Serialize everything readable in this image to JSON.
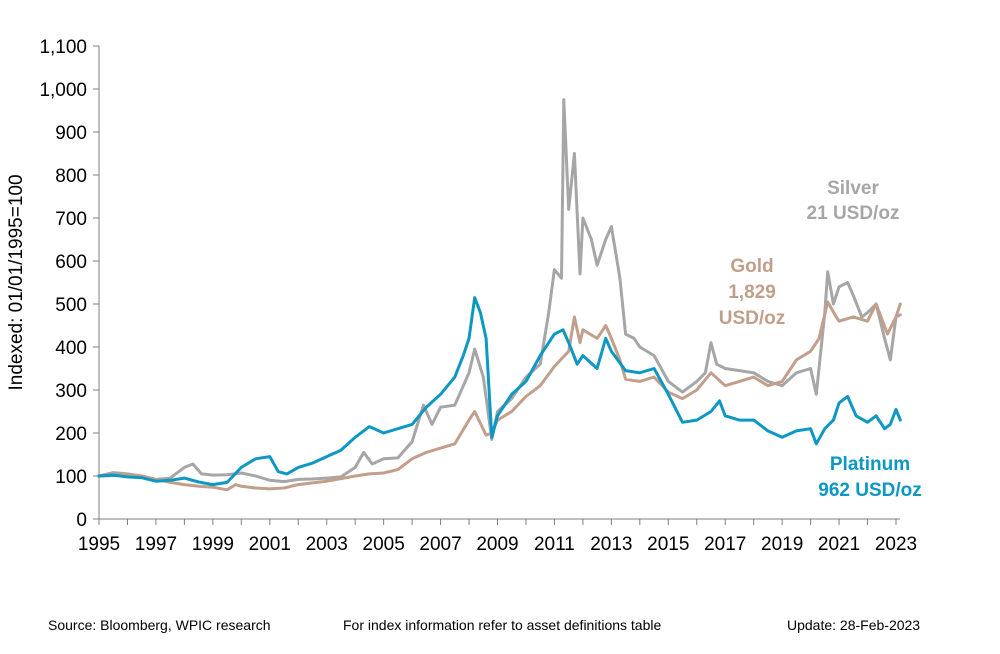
{
  "chart_data": {
    "type": "line",
    "ylabel": "Indexed: 01/01/1995=100",
    "ylim": [
      0,
      1100
    ],
    "yticks": [
      0,
      100,
      200,
      300,
      400,
      500,
      600,
      700,
      800,
      900,
      1000,
      1100
    ],
    "ytick_labels": [
      "0",
      "100",
      "200",
      "300",
      "400",
      "500",
      "600",
      "700",
      "800",
      "900",
      "1,000",
      "1,100"
    ],
    "xlim": [
      1995,
      2023.2
    ],
    "xticks": [
      1995,
      1997,
      1999,
      2001,
      2003,
      2005,
      2007,
      2009,
      2011,
      2013,
      2015,
      2017,
      2019,
      2021,
      2023
    ],
    "xtick_labels": [
      "1995",
      "1997",
      "1999",
      "2001",
      "2003",
      "2005",
      "2007",
      "2009",
      "2011",
      "2013",
      "2015",
      "2017",
      "2019",
      "2021",
      "2023"
    ],
    "grid": false,
    "legend": "none",
    "series": [
      {
        "name": "Silver",
        "color": "#A6A6A6",
        "label_lines": [
          "Silver",
          "21 USD/oz"
        ],
        "points": [
          [
            1995,
            100
          ],
          [
            1995.5,
            108
          ],
          [
            1996,
            105
          ],
          [
            1996.5,
            100
          ],
          [
            1997,
            92
          ],
          [
            1997.5,
            95
          ],
          [
            1998,
            120
          ],
          [
            1998.3,
            128
          ],
          [
            1998.6,
            105
          ],
          [
            1999,
            102
          ],
          [
            1999.5,
            103
          ],
          [
            2000,
            107
          ],
          [
            2000.5,
            100
          ],
          [
            2001,
            90
          ],
          [
            2001.5,
            87
          ],
          [
            2002,
            92
          ],
          [
            2002.5,
            93
          ],
          [
            2003,
            95
          ],
          [
            2003.5,
            98
          ],
          [
            2004,
            120
          ],
          [
            2004.3,
            155
          ],
          [
            2004.6,
            128
          ],
          [
            2005,
            140
          ],
          [
            2005.5,
            142
          ],
          [
            2006,
            180
          ],
          [
            2006.4,
            265
          ],
          [
            2006.7,
            220
          ],
          [
            2007,
            260
          ],
          [
            2007.5,
            265
          ],
          [
            2008,
            340
          ],
          [
            2008.2,
            395
          ],
          [
            2008.5,
            330
          ],
          [
            2008.8,
            185
          ],
          [
            2009,
            250
          ],
          [
            2009.5,
            280
          ],
          [
            2010,
            330
          ],
          [
            2010.5,
            360
          ],
          [
            2010.8,
            480
          ],
          [
            2011,
            580
          ],
          [
            2011.25,
            560
          ],
          [
            2011.33,
            975
          ],
          [
            2011.5,
            720
          ],
          [
            2011.7,
            850
          ],
          [
            2011.9,
            570
          ],
          [
            2012,
            700
          ],
          [
            2012.3,
            650
          ],
          [
            2012.5,
            590
          ],
          [
            2012.8,
            650
          ],
          [
            2013,
            680
          ],
          [
            2013.3,
            560
          ],
          [
            2013.5,
            430
          ],
          [
            2013.8,
            420
          ],
          [
            2014,
            400
          ],
          [
            2014.5,
            380
          ],
          [
            2015,
            320
          ],
          [
            2015.5,
            295
          ],
          [
            2016,
            320
          ],
          [
            2016.3,
            340
          ],
          [
            2016.5,
            410
          ],
          [
            2016.7,
            360
          ],
          [
            2017,
            350
          ],
          [
            2017.5,
            345
          ],
          [
            2018,
            340
          ],
          [
            2018.5,
            320
          ],
          [
            2019,
            310
          ],
          [
            2019.5,
            340
          ],
          [
            2020,
            350
          ],
          [
            2020.2,
            290
          ],
          [
            2020.5,
            480
          ],
          [
            2020.6,
            575
          ],
          [
            2020.8,
            500
          ],
          [
            2021,
            540
          ],
          [
            2021.3,
            550
          ],
          [
            2021.5,
            520
          ],
          [
            2021.8,
            470
          ],
          [
            2022,
            480
          ],
          [
            2022.3,
            500
          ],
          [
            2022.6,
            420
          ],
          [
            2022.8,
            370
          ],
          [
            2023,
            470
          ],
          [
            2023.15,
            475
          ]
        ]
      },
      {
        "name": "Gold",
        "color": "#C29F8A",
        "label_lines": [
          "Gold",
          "1,829",
          "USD/oz"
        ],
        "points": [
          [
            1995,
            100
          ],
          [
            1995.5,
            101
          ],
          [
            1996,
            104
          ],
          [
            1996.5,
            100
          ],
          [
            1997,
            92
          ],
          [
            1997.5,
            85
          ],
          [
            1998,
            80
          ],
          [
            1998.5,
            76
          ],
          [
            1999,
            74
          ],
          [
            1999.5,
            68
          ],
          [
            1999.8,
            80
          ],
          [
            2000,
            76
          ],
          [
            2000.5,
            72
          ],
          [
            2001,
            70
          ],
          [
            2001.5,
            72
          ],
          [
            2002,
            80
          ],
          [
            2002.5,
            84
          ],
          [
            2003,
            88
          ],
          [
            2003.5,
            94
          ],
          [
            2004,
            100
          ],
          [
            2004.5,
            105
          ],
          [
            2005,
            107
          ],
          [
            2005.5,
            115
          ],
          [
            2006,
            140
          ],
          [
            2006.5,
            155
          ],
          [
            2007,
            165
          ],
          [
            2007.5,
            175
          ],
          [
            2008,
            230
          ],
          [
            2008.2,
            250
          ],
          [
            2008.6,
            195
          ],
          [
            2008.8,
            200
          ],
          [
            2009,
            230
          ],
          [
            2009.5,
            250
          ],
          [
            2010,
            285
          ],
          [
            2010.5,
            310
          ],
          [
            2011,
            355
          ],
          [
            2011.5,
            390
          ],
          [
            2011.7,
            470
          ],
          [
            2011.9,
            410
          ],
          [
            2012,
            440
          ],
          [
            2012.5,
            420
          ],
          [
            2012.8,
            450
          ],
          [
            2013,
            420
          ],
          [
            2013.3,
            370
          ],
          [
            2013.5,
            325
          ],
          [
            2014,
            320
          ],
          [
            2014.5,
            330
          ],
          [
            2015,
            295
          ],
          [
            2015.5,
            280
          ],
          [
            2016,
            300
          ],
          [
            2016.5,
            340
          ],
          [
            2017,
            310
          ],
          [
            2017.5,
            320
          ],
          [
            2018,
            330
          ],
          [
            2018.5,
            310
          ],
          [
            2019,
            320
          ],
          [
            2019.5,
            370
          ],
          [
            2020,
            390
          ],
          [
            2020.3,
            420
          ],
          [
            2020.6,
            505
          ],
          [
            2020.9,
            470
          ],
          [
            2021,
            460
          ],
          [
            2021.5,
            470
          ],
          [
            2022,
            460
          ],
          [
            2022.3,
            500
          ],
          [
            2022.7,
            430
          ],
          [
            2023,
            470
          ],
          [
            2023.15,
            500
          ]
        ]
      },
      {
        "name": "Platinum",
        "color": "#0D97C3",
        "label_lines": [
          "Platinum",
          "962 USD/oz"
        ],
        "points": [
          [
            1995,
            100
          ],
          [
            1995.5,
            102
          ],
          [
            1996,
            98
          ],
          [
            1996.5,
            96
          ],
          [
            1997,
            88
          ],
          [
            1997.5,
            90
          ],
          [
            1998,
            95
          ],
          [
            1998.5,
            86
          ],
          [
            1999,
            80
          ],
          [
            1999.5,
            85
          ],
          [
            2000,
            120
          ],
          [
            2000.5,
            140
          ],
          [
            2001,
            145
          ],
          [
            2001.3,
            110
          ],
          [
            2001.6,
            105
          ],
          [
            2002,
            120
          ],
          [
            2002.5,
            130
          ],
          [
            2003,
            145
          ],
          [
            2003.5,
            160
          ],
          [
            2004,
            190
          ],
          [
            2004.5,
            215
          ],
          [
            2005,
            200
          ],
          [
            2005.5,
            210
          ],
          [
            2006,
            220
          ],
          [
            2006.5,
            260
          ],
          [
            2007,
            290
          ],
          [
            2007.5,
            330
          ],
          [
            2007.8,
            380
          ],
          [
            2008,
            420
          ],
          [
            2008.2,
            515
          ],
          [
            2008.4,
            480
          ],
          [
            2008.6,
            420
          ],
          [
            2008.8,
            190
          ],
          [
            2009,
            240
          ],
          [
            2009.5,
            290
          ],
          [
            2010,
            320
          ],
          [
            2010.5,
            380
          ],
          [
            2011,
            430
          ],
          [
            2011.3,
            440
          ],
          [
            2011.5,
            410
          ],
          [
            2011.8,
            360
          ],
          [
            2012,
            380
          ],
          [
            2012.5,
            350
          ],
          [
            2012.8,
            420
          ],
          [
            2013,
            390
          ],
          [
            2013.5,
            345
          ],
          [
            2014,
            340
          ],
          [
            2014.5,
            350
          ],
          [
            2015,
            290
          ],
          [
            2015.5,
            225
          ],
          [
            2016,
            230
          ],
          [
            2016.5,
            250
          ],
          [
            2016.8,
            275
          ],
          [
            2017,
            240
          ],
          [
            2017.5,
            230
          ],
          [
            2018,
            230
          ],
          [
            2018.5,
            205
          ],
          [
            2019,
            190
          ],
          [
            2019.5,
            205
          ],
          [
            2020,
            210
          ],
          [
            2020.2,
            175
          ],
          [
            2020.5,
            210
          ],
          [
            2020.8,
            230
          ],
          [
            2021,
            270
          ],
          [
            2021.3,
            285
          ],
          [
            2021.6,
            240
          ],
          [
            2022,
            225
          ],
          [
            2022.3,
            240
          ],
          [
            2022.6,
            210
          ],
          [
            2022.8,
            220
          ],
          [
            2023,
            255
          ],
          [
            2023.15,
            230
          ]
        ]
      }
    ]
  },
  "footer": {
    "source": "Source: Bloomberg, WPIC research",
    "note": "For index information refer to asset definitions table",
    "update": "Update: 28-Feb-2023"
  }
}
